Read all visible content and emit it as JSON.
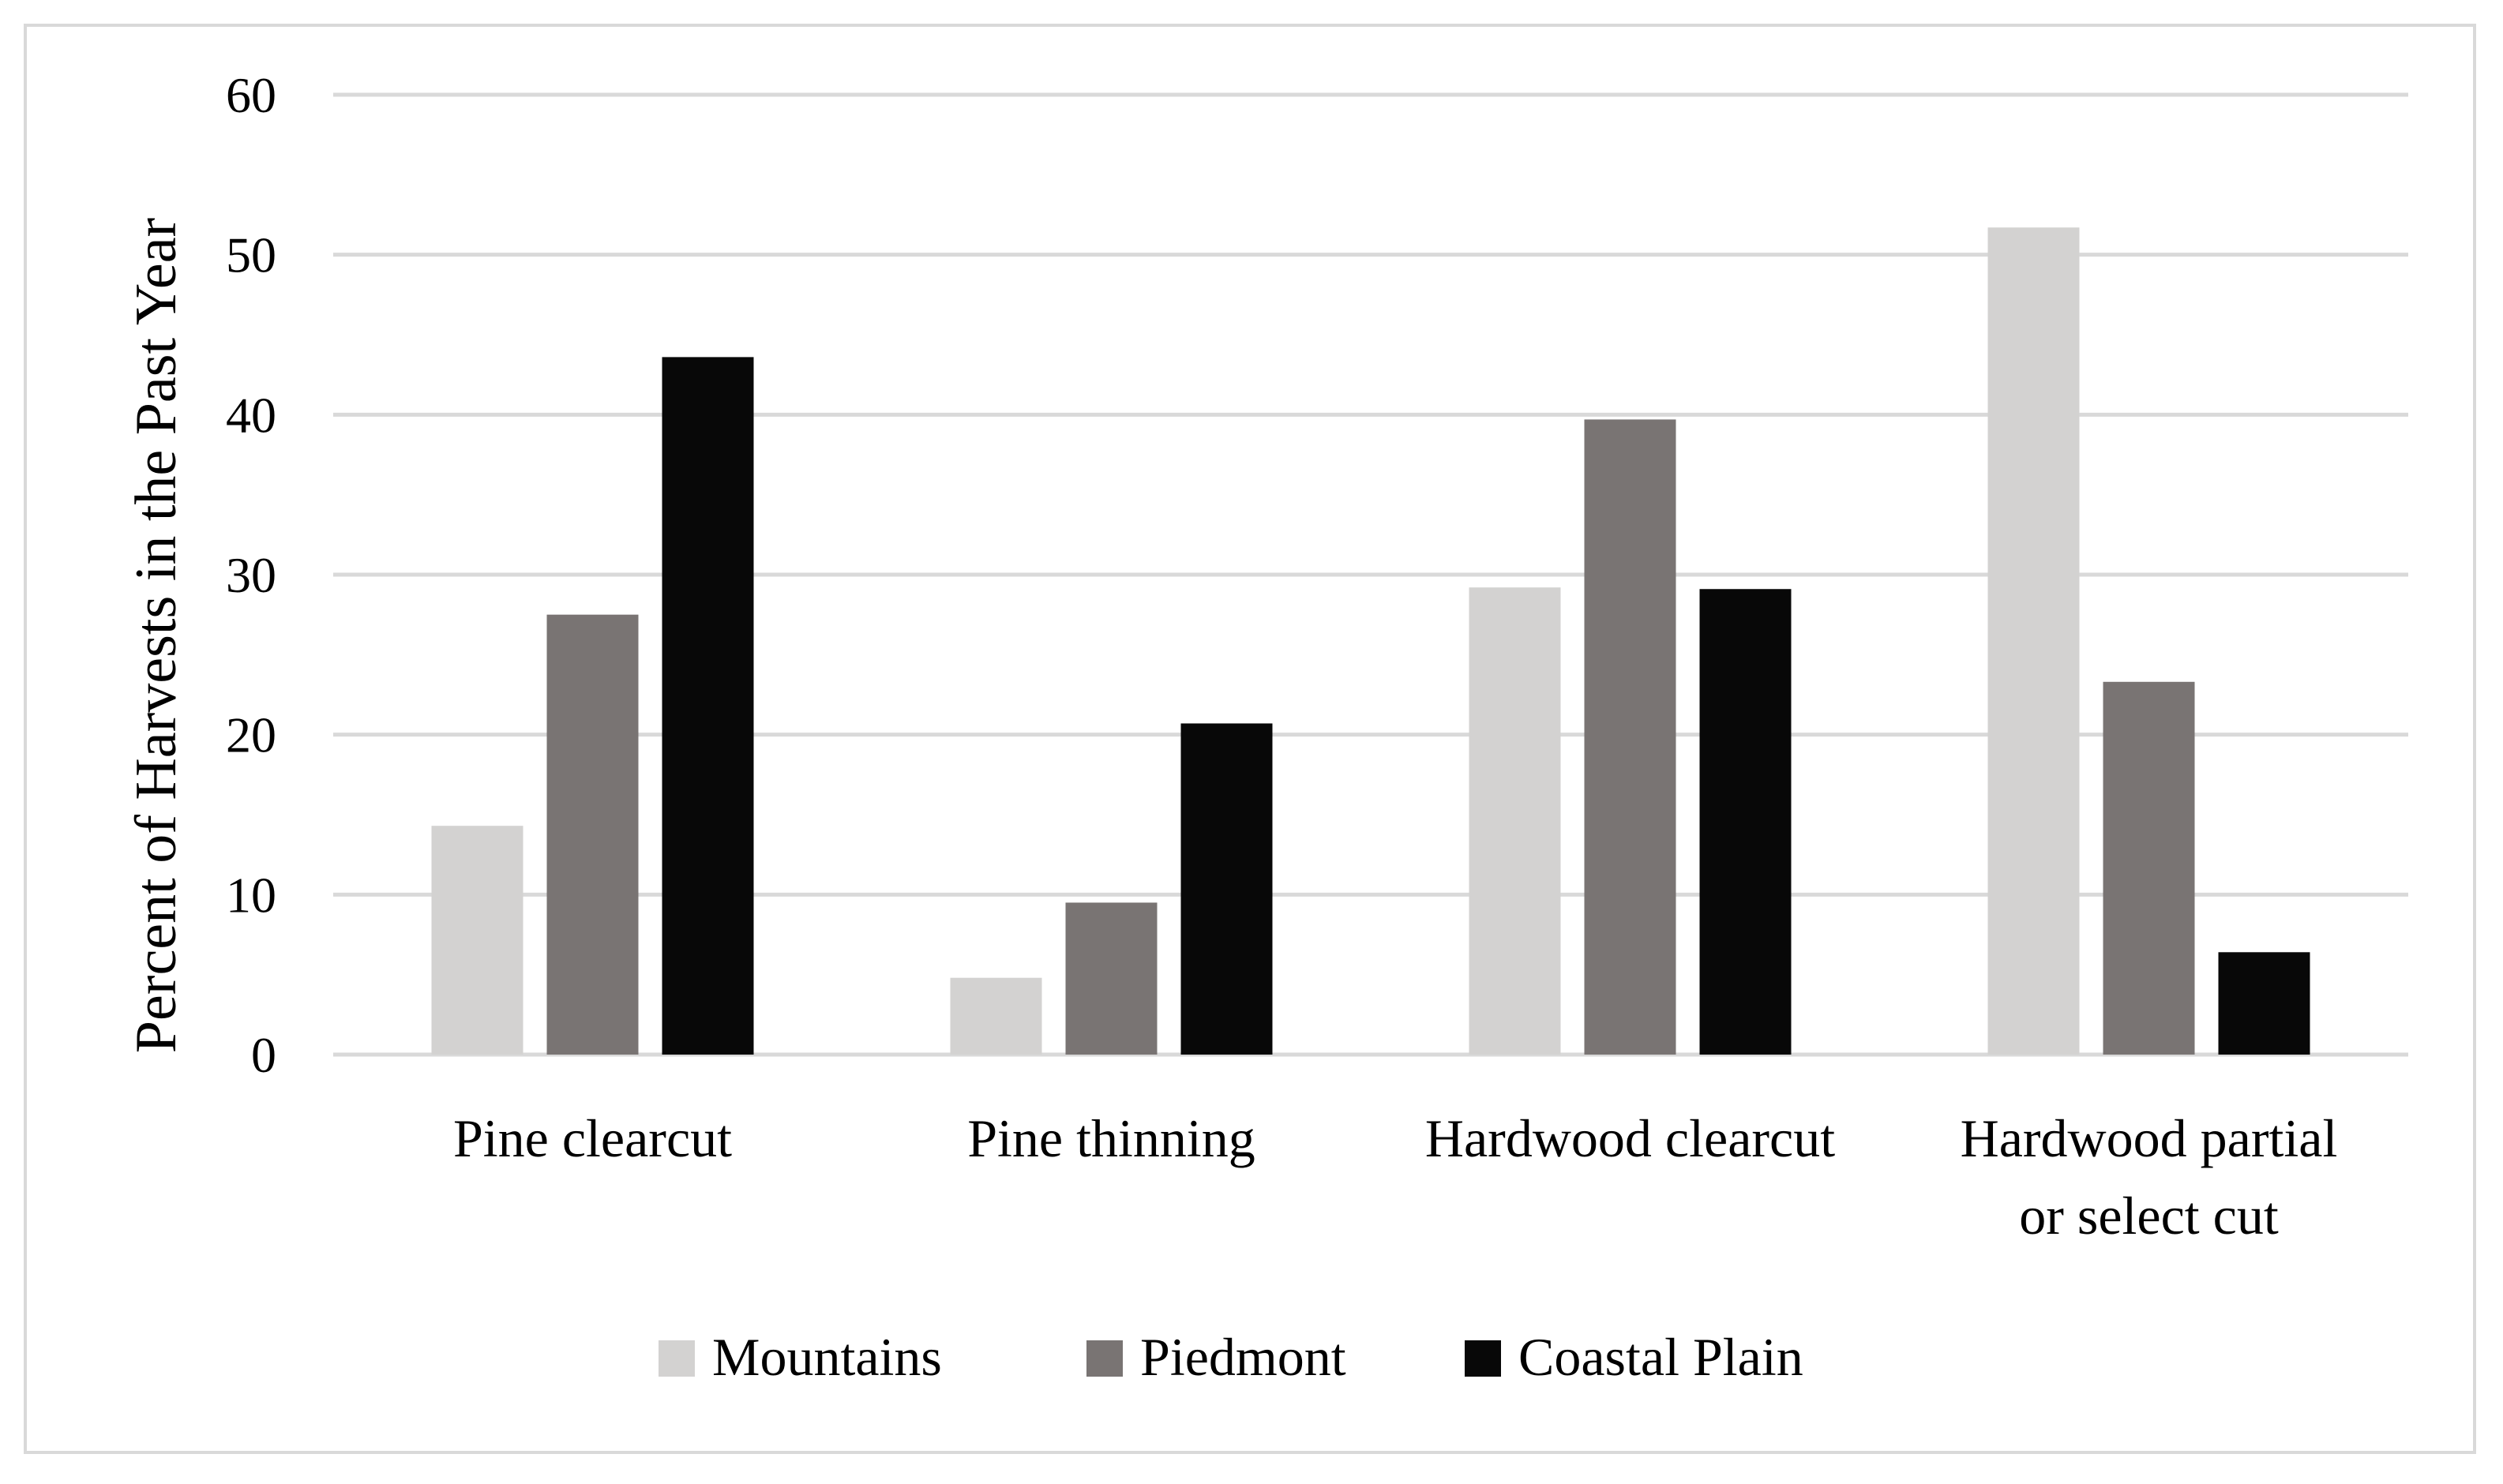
{
  "chart_data": {
    "type": "bar",
    "title": "",
    "xlabel": "",
    "ylabel": "Percent of Harvests in the Past Year",
    "ylim": [
      0,
      60
    ],
    "yticks": [
      "0",
      "10",
      "20",
      "30",
      "40",
      "50",
      "60"
    ],
    "grid": true,
    "legend_position": "bottom",
    "categories": [
      [
        "Pine clearcut"
      ],
      [
        "Pine thinning"
      ],
      [
        "Hardwood clearcut"
      ],
      [
        "Hardwood partial",
        "or select cut"
      ]
    ],
    "series": [
      {
        "name": "Mountains",
        "color": "#d3d2d1",
        "values": [
          14.3,
          4.8,
          29.2,
          51.7
        ]
      },
      {
        "name": "Piedmont",
        "color": "#797473",
        "values": [
          27.5,
          9.5,
          39.7,
          23.3
        ]
      },
      {
        "name": "Coastal Plain",
        "color": "#080808",
        "values": [
          43.6,
          20.7,
          29.1,
          6.4
        ]
      }
    ],
    "colors": {
      "gridline": "#d9d9d9",
      "frame": "#d9d9d9"
    }
  }
}
